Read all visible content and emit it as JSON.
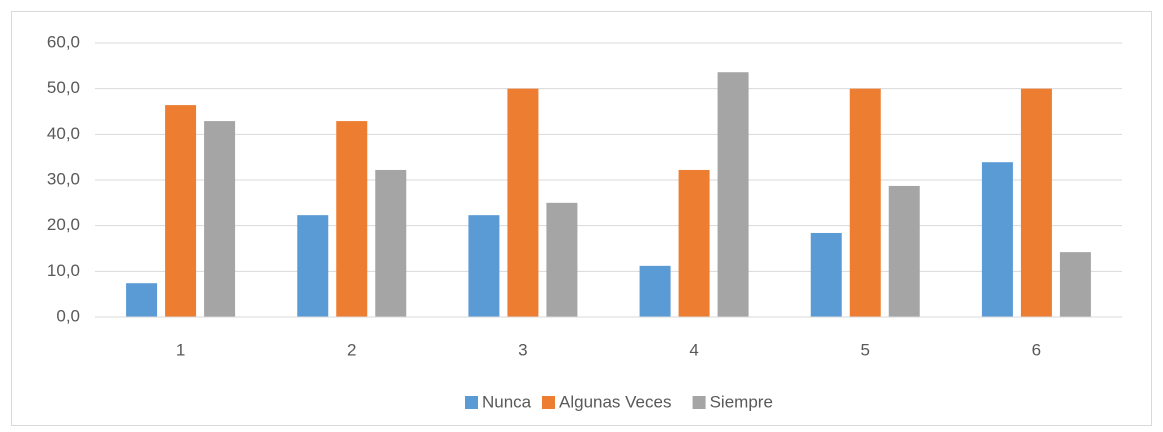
{
  "chart_data": {
    "type": "bar",
    "categories": [
      "1",
      "2",
      "3",
      "4",
      "5",
      "6"
    ],
    "series": [
      {
        "name": "Nunca",
        "color": "#5b9bd5",
        "values": [
          7.4,
          22.3,
          22.3,
          11.2,
          18.4,
          33.9
        ]
      },
      {
        "name": "Algunas Veces",
        "color": "#ed7d31",
        "values": [
          46.4,
          42.9,
          50.0,
          32.2,
          50.0,
          50.0
        ]
      },
      {
        "name": "Siempre",
        "color": "#a5a5a5",
        "values": [
          42.9,
          32.2,
          25.0,
          53.6,
          28.7,
          14.2
        ]
      }
    ],
    "ylim": [
      0,
      60
    ],
    "yticks": [
      {
        "value": 0,
        "label": "0,0"
      },
      {
        "value": 10,
        "label": "10,0"
      },
      {
        "value": 20,
        "label": "20,0"
      },
      {
        "value": 30,
        "label": "30,0"
      },
      {
        "value": 40,
        "label": "40,0"
      },
      {
        "value": 50,
        "label": "50,0"
      },
      {
        "value": 60,
        "label": "60,0"
      }
    ],
    "grid": true,
    "legend": "bottom"
  }
}
